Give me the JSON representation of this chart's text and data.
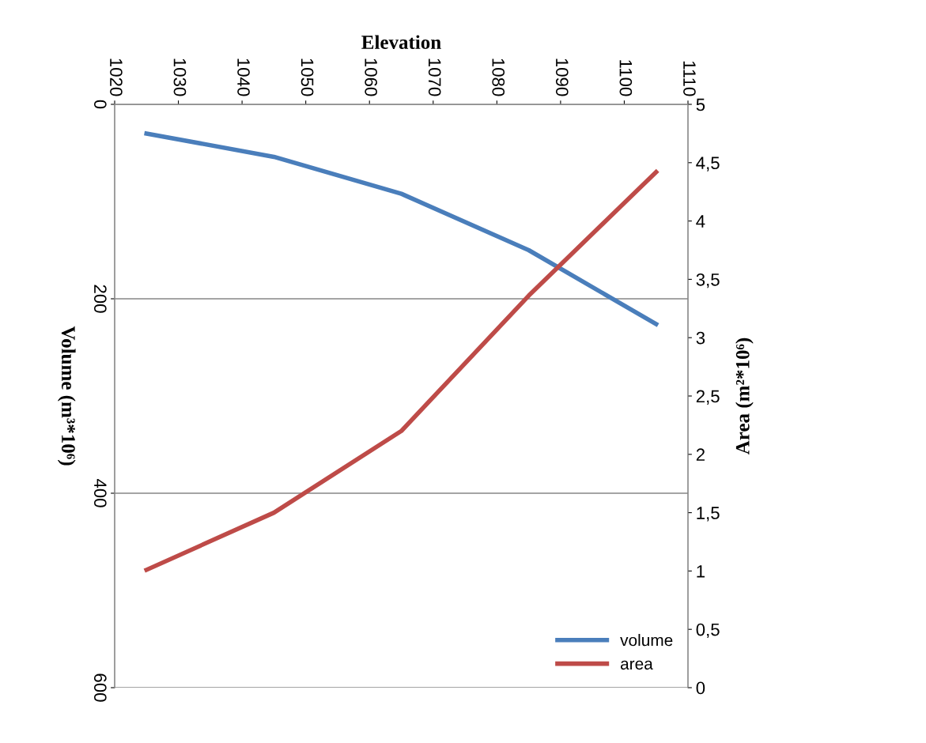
{
  "chart_data": {
    "type": "line",
    "xlabel": "Elevation",
    "ylabel": "Volume (m³*10⁶)",
    "y2label": "Area (m²*10⁶)",
    "x": [
      1025,
      1045,
      1065,
      1085,
      1105
    ],
    "series": [
      {
        "name": "volume",
        "color": "#4a7ebb",
        "values": [
          30,
          54,
          92,
          150,
          226
        ],
        "axis": "y"
      },
      {
        "name": "area",
        "color": "#be4b48",
        "values": [
          1.01,
          1.5,
          2.2,
          3.36,
          4.42
        ],
        "axis": "y2"
      }
    ],
    "xlim": [
      1020,
      1110
    ],
    "xticks": [
      1020,
      1030,
      1040,
      1050,
      1060,
      1070,
      1080,
      1090,
      1100,
      1110
    ],
    "ylim": [
      600,
      0
    ],
    "yticks": [
      0,
      200,
      400,
      600
    ],
    "y2lim": [
      0,
      5
    ],
    "y2ticks": [
      0,
      {
        "value": 0.5,
        "label": "0,5"
      },
      1,
      {
        "value": 1.5,
        "label": "1,5"
      },
      2,
      {
        "value": 2.5,
        "label": "2,5"
      },
      3,
      {
        "value": 3.5,
        "label": "3,5"
      },
      4,
      {
        "value": 4.5,
        "label": "4,5"
      },
      5
    ],
    "grid": "y",
    "legend": "bottom right",
    "marker": "none",
    "line_style": "solid"
  }
}
